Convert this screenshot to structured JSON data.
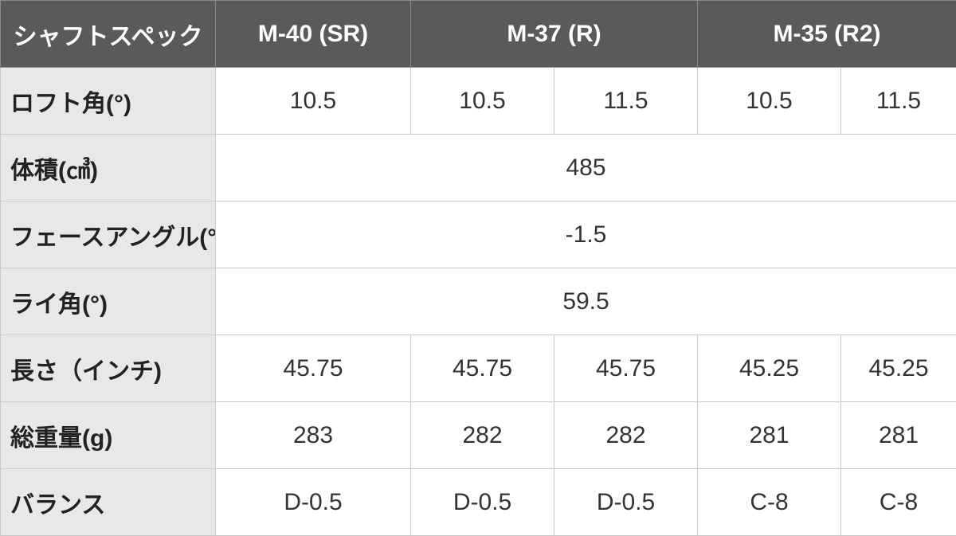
{
  "table": {
    "header": [
      "シャフトスペック",
      "M-40 (SR)",
      "M-37 (R)",
      "M-35 (R2)"
    ],
    "header_spans": [
      1,
      1,
      2,
      2
    ],
    "rows": [
      {
        "label": "ロフト角(°)",
        "cells": [
          "10.5",
          "10.5",
          "11.5",
          "10.5",
          "11.5"
        ]
      },
      {
        "label": "体積(㎤)",
        "cells": [
          "485"
        ]
      },
      {
        "label": "フェースアングル(°)",
        "cells": [
          "-1.5"
        ]
      },
      {
        "label": "ライ角(°)",
        "cells": [
          "59.5"
        ]
      },
      {
        "label": "長さ（インチ)",
        "cells": [
          "45.75",
          "45.75",
          "45.75",
          "45.25",
          "45.25"
        ]
      },
      {
        "label": "総重量(g)",
        "cells": [
          "283",
          "282",
          "282",
          "281",
          "281"
        ]
      },
      {
        "label": "バランス",
        "cells": [
          "D-0.5",
          "D-0.5",
          "D-0.5",
          "C-8",
          "C-8"
        ]
      }
    ]
  }
}
